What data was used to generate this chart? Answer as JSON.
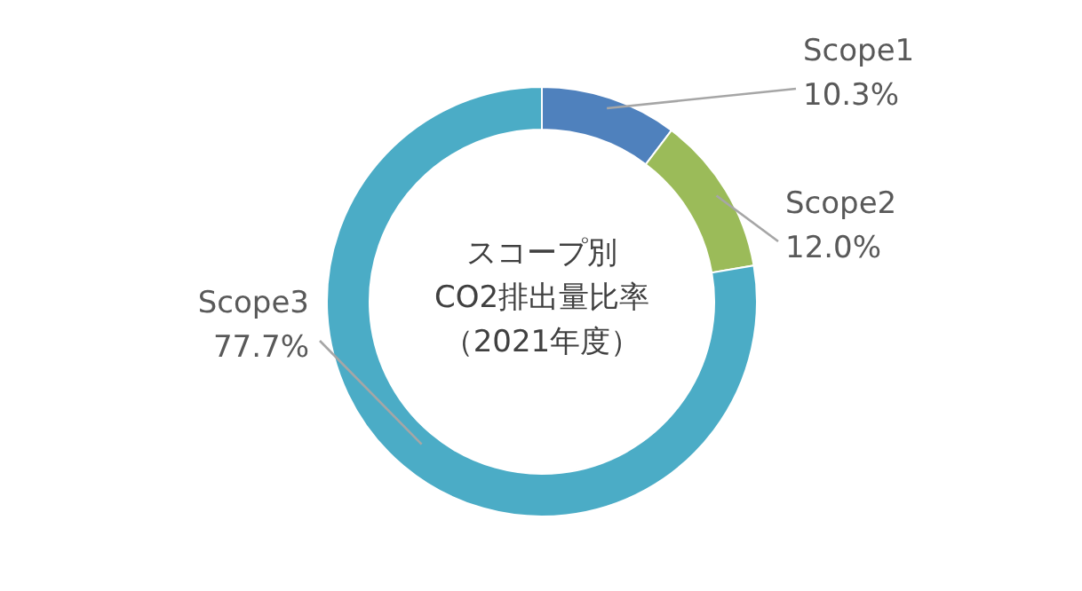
{
  "chart_data": {
    "type": "donut",
    "title": "スコープ別CO2排出量比率（2021年度）",
    "categories": [
      "Scope1",
      "Scope2",
      "Scope3"
    ],
    "values": [
      10.3,
      12.0,
      77.7
    ],
    "value_labels": [
      "10.3%",
      "12.0%",
      "77.7%"
    ],
    "colors": [
      "#4f81bd",
      "#9bbb59",
      "#4bacc6"
    ],
    "legend": false
  }
}
